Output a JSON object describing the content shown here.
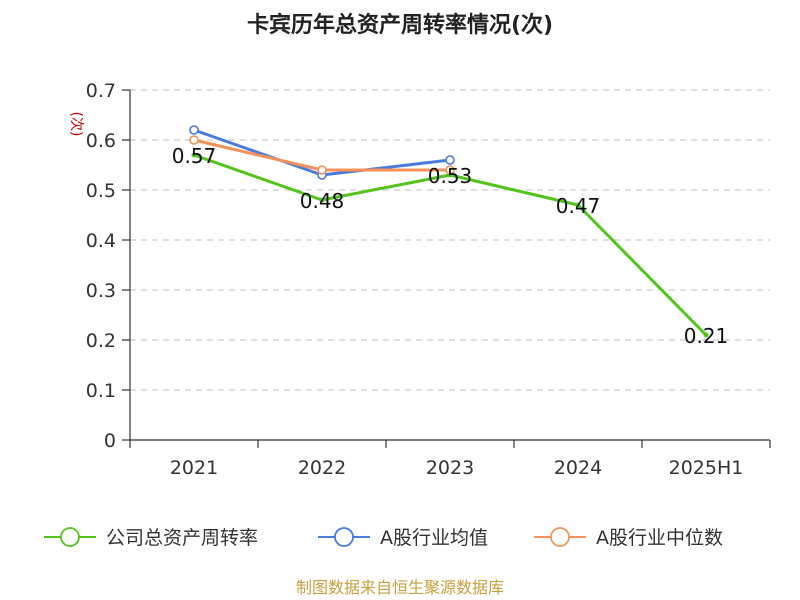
{
  "chart_data": {
    "type": "line",
    "title": "卡宾历年总资产周转率情况(次)",
    "ylabel": "(次)",
    "xlabel": "",
    "categories": [
      "2021",
      "2022",
      "2023",
      "2024",
      "2025H1"
    ],
    "y_ticks": [
      "0",
      "0.1",
      "0.2",
      "0.3",
      "0.4",
      "0.5",
      "0.6",
      "0.7"
    ],
    "ylim": [
      0,
      0.7
    ],
    "grid": true,
    "legend_position": "bottom",
    "series": [
      {
        "name": "公司总资产周转率",
        "color": "#52c41a",
        "values": [
          0.57,
          0.48,
          0.53,
          0.47,
          0.21
        ],
        "labels": [
          "0.57",
          "0.48",
          "0.53",
          "0.47",
          "0.21"
        ]
      },
      {
        "name": "A股行业均值",
        "color": "#4a7bdc",
        "values": [
          0.62,
          0.53,
          0.56,
          null,
          null
        ]
      },
      {
        "name": "A股行业中位数",
        "color": "#f4925a",
        "values": [
          0.6,
          0.54,
          0.54,
          null,
          null
        ]
      }
    ],
    "source": "制图数据来自恒生聚源数据库",
    "colors": {
      "axis": "#333333",
      "grid": "#cccccc",
      "ylabel": "#cc0000",
      "source": "#c8a040"
    }
  }
}
